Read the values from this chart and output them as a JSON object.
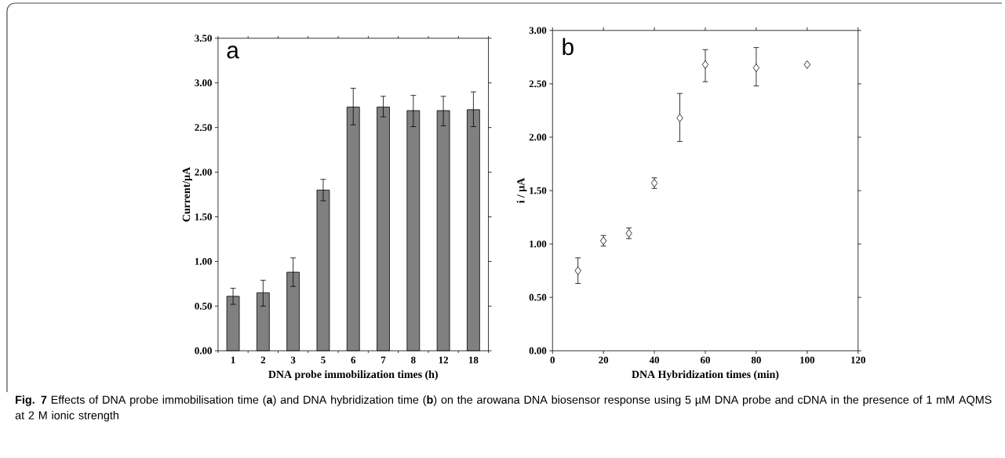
{
  "chart_data": [
    {
      "type": "bar",
      "xlabel": "DNA probe immobilization times (h)",
      "ylabel": "Current/μA",
      "categories": [
        "1",
        "2",
        "3",
        "5",
        "6",
        "7",
        "8",
        "12",
        "18"
      ],
      "values": [
        0.61,
        0.65,
        0.88,
        1.8,
        2.73,
        2.73,
        2.69,
        2.69,
        2.7
      ],
      "color": "#808080",
      "errors": [
        [
          0.52,
          0.7
        ],
        [
          0.5,
          0.79
        ],
        [
          0.72,
          1.04
        ],
        [
          1.68,
          1.92
        ],
        [
          2.53,
          2.94
        ],
        [
          2.62,
          2.85
        ],
        [
          2.51,
          2.86
        ],
        [
          2.52,
          2.85
        ],
        [
          2.51,
          2.9
        ]
      ],
      "ylim": [
        0,
        3.5
      ],
      "yticks": [
        {
          "value": 0,
          "label": "0.00"
        },
        {
          "value": 0.5,
          "label": "0.50"
        },
        {
          "value": 1,
          "label": "1.00"
        },
        {
          "value": 1.5,
          "label": "1.50"
        },
        {
          "value": 2,
          "label": "2.00"
        },
        {
          "value": 2.5,
          "label": "2.50"
        },
        {
          "value": 3,
          "label": "3.00"
        },
        {
          "value": 3.5,
          "label": "3.50"
        }
      ],
      "annotations": [
        "a"
      ]
    },
    {
      "type": "scatter",
      "xlabel": "DNA Hybridization times (min)",
      "ylabel": "i / μA",
      "x": [
        10,
        20,
        30,
        40,
        50,
        60,
        80,
        100
      ],
      "values": [
        0.75,
        1.03,
        1.1,
        1.57,
        2.18,
        2.68,
        2.65,
        2.68
      ],
      "color": "#000000",
      "marker": "diamond",
      "errors": [
        [
          0.63,
          0.87
        ],
        [
          0.98,
          1.08
        ],
        [
          1.05,
          1.15
        ],
        [
          1.52,
          1.62
        ],
        [
          1.96,
          2.41
        ],
        [
          2.52,
          2.82
        ],
        [
          2.48,
          2.84
        ],
        null
      ],
      "xlim": [
        0,
        120
      ],
      "xticks": [
        0,
        20,
        40,
        60,
        80,
        100,
        120
      ],
      "ylim": [
        0,
        3
      ],
      "yticks": [
        {
          "value": 0,
          "label": "0.00"
        },
        {
          "value": 0.5,
          "label": "0.50"
        },
        {
          "value": 1,
          "label": "1.00"
        },
        {
          "value": 1.5,
          "label": "1.50"
        },
        {
          "value": 2,
          "label": "2.00"
        },
        {
          "value": 2.5,
          "label": "2.50"
        },
        {
          "value": 3,
          "label": "3.00"
        }
      ],
      "annotations": [
        "b",
        "**Fig. 7** Effects of DNA probe immobilisation time (**a**) and DNA hybridization time (**b**) on the arowana DNA biosensor response using 5 µM DNA probe and cDNA in the presence of 1 mM AQMS at 2 M ionic strength"
      ]
    }
  ]
}
